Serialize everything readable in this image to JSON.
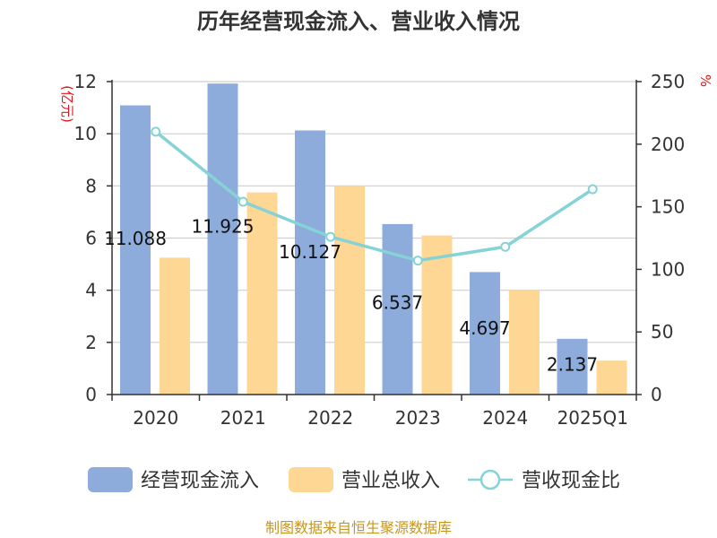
{
  "chart_data": {
    "type": "bar",
    "title": "历年经营现金流入、营业收入情况",
    "categories": [
      "2020",
      "2021",
      "2022",
      "2023",
      "2024",
      "2025Q1"
    ],
    "series": [
      {
        "name": "经营现金流入",
        "type": "bar",
        "axis": "left",
        "values": [
          11.088,
          11.925,
          10.127,
          6.537,
          4.697,
          2.137
        ]
      },
      {
        "name": "营业总收入",
        "type": "bar",
        "axis": "left",
        "values": [
          5.25,
          7.75,
          8.0,
          6.1,
          4.0,
          1.3
        ]
      },
      {
        "name": "营收现金比",
        "type": "line",
        "axis": "right",
        "values": [
          210,
          154,
          126,
          107,
          118,
          164
        ]
      }
    ],
    "data_labels": [
      "11.088",
      "11.925",
      "10.127",
      "6.537",
      "4.697",
      "2.137"
    ],
    "ylim_left": [
      0,
      12
    ],
    "yticks_left": [
      "0",
      "2",
      "4",
      "6",
      "8",
      "10",
      "12"
    ],
    "ylim_right": [
      0,
      250
    ],
    "yticks_right": [
      "0",
      "50",
      "100",
      "150",
      "200",
      "250"
    ],
    "ylabel_left": "(亿元)",
    "ylabel_right": "%",
    "grid": true,
    "legend_position": "bottom",
    "colors": {
      "cash_in": "#8eacdb",
      "revenue": "#fed794",
      "ratio": "#85d3d6"
    }
  },
  "footer": {
    "source": "制图数据来自恒生聚源数据库"
  }
}
